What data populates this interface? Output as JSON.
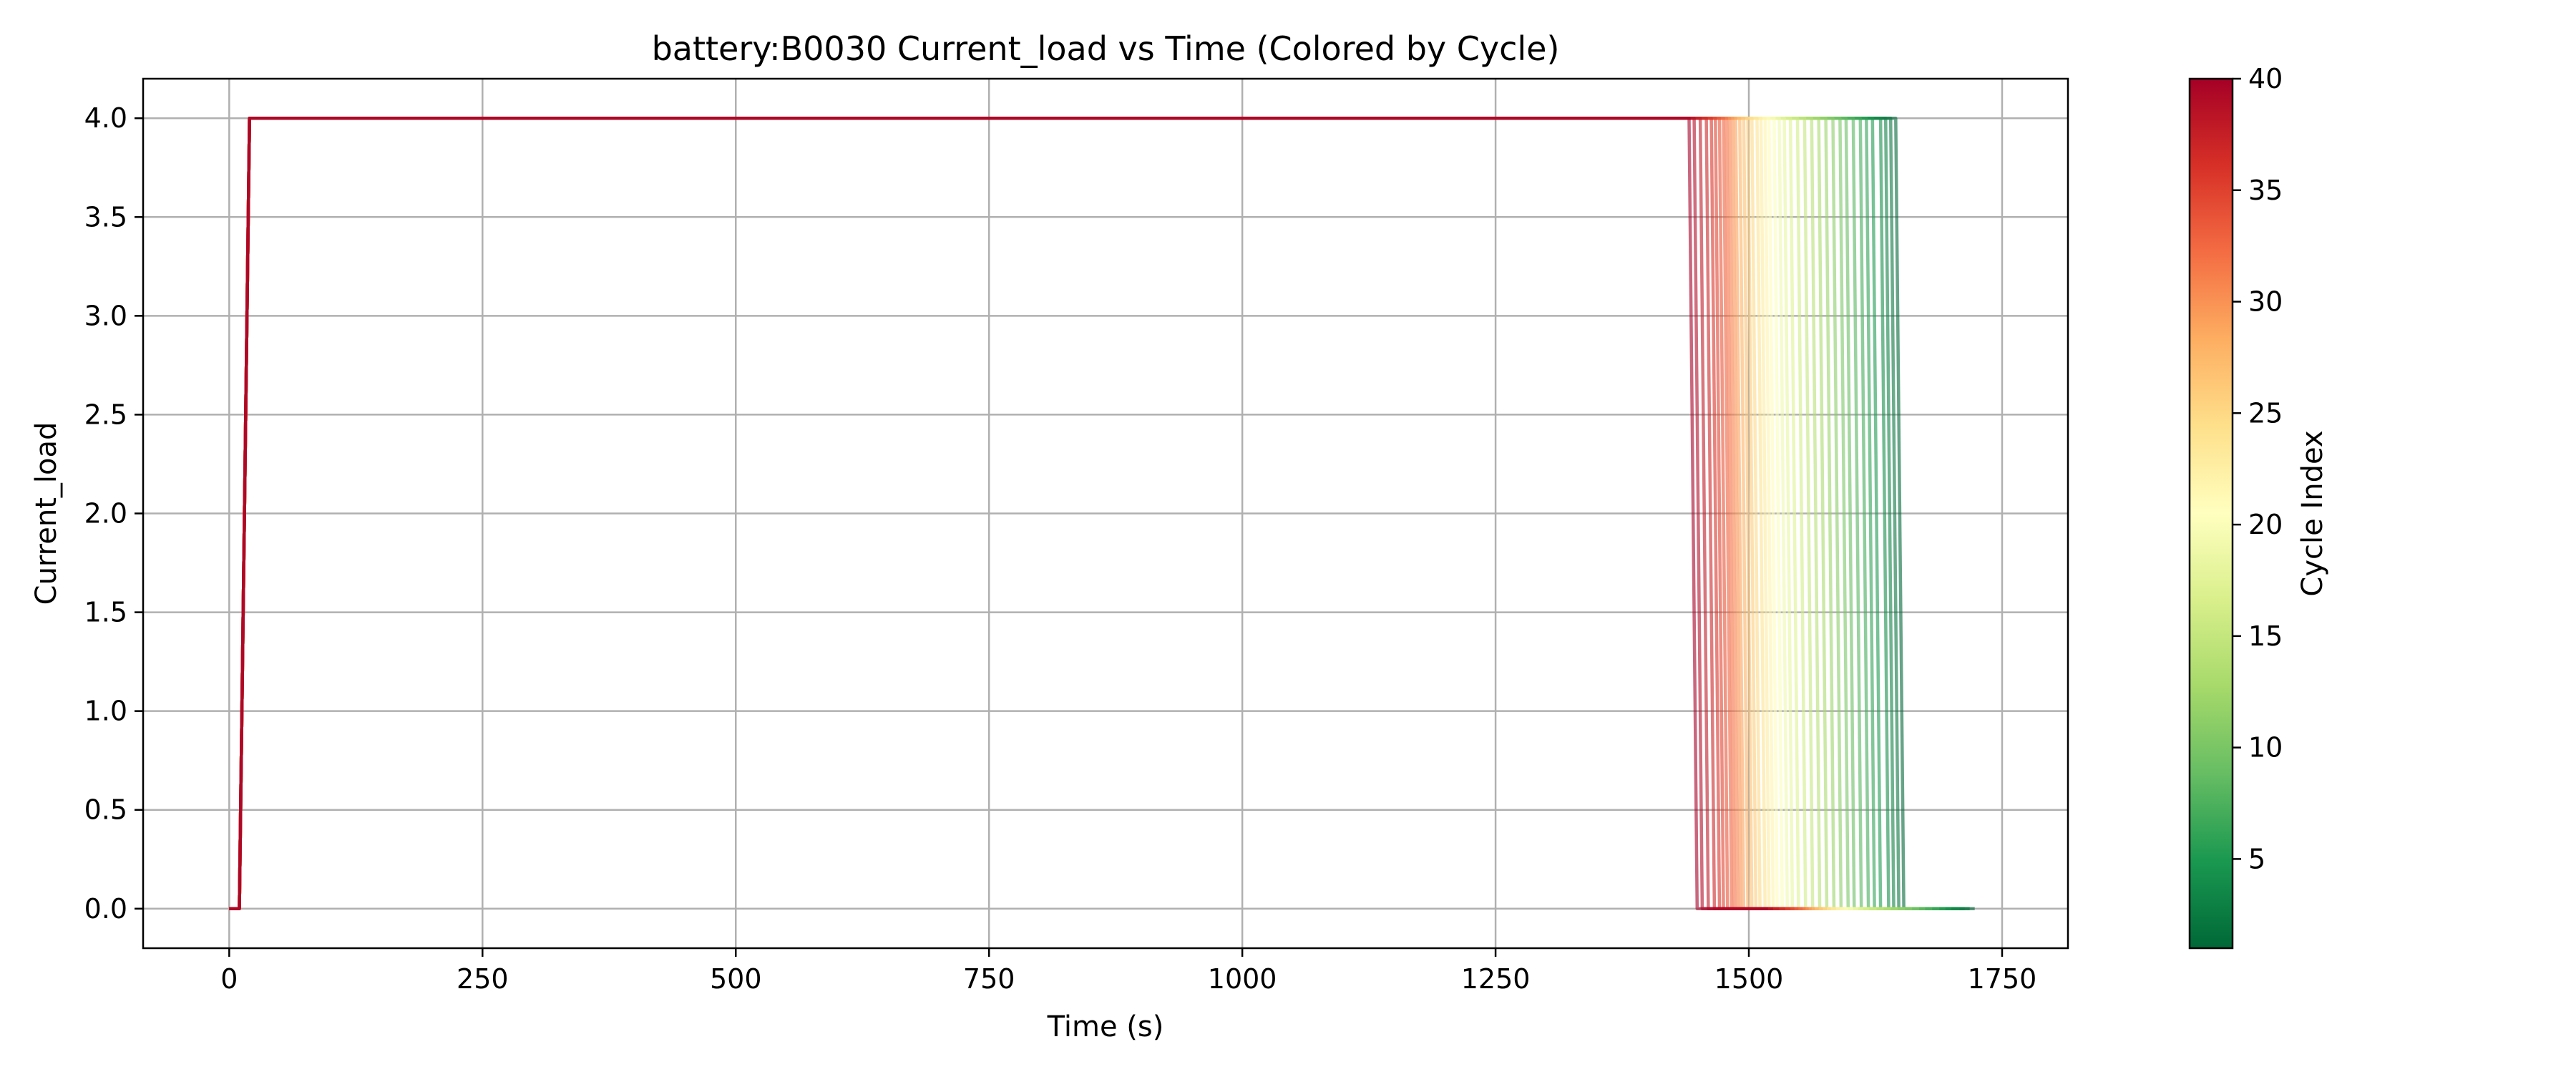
{
  "chart_data": {
    "type": "line",
    "title": "battery:B0030 Current_load vs Time (Colored by Cycle)",
    "xlabel": "Time (s)",
    "ylabel": "Current_load",
    "xlim": [
      -85,
      1815
    ],
    "ylim": [
      -0.2,
      4.2
    ],
    "xticks": [
      0,
      250,
      500,
      750,
      1000,
      1250,
      1500,
      1750
    ],
    "yticks": [
      "0.0",
      "0.5",
      "1.0",
      "1.5",
      "2.0",
      "2.5",
      "3.0",
      "3.5",
      "4.0"
    ],
    "grid": true,
    "colormap": "RdYlGn_r",
    "colorbar": {
      "label": "Cycle Index",
      "range": [
        1,
        40
      ],
      "ticks": [
        5,
        10,
        15,
        20,
        25,
        30,
        35,
        40
      ],
      "colors": [
        "#006837",
        "#1a9850",
        "#66bd63",
        "#a6d96a",
        "#d9ef8b",
        "#ffffbf",
        "#fee08b",
        "#fdae61",
        "#f46d43",
        "#d73027",
        "#a50026"
      ]
    },
    "series_template": {
      "time": [
        0,
        10,
        20
      ],
      "current": [
        0.0,
        0.0,
        4.0
      ],
      "low_current": 0.0,
      "high_current": 4.0
    },
    "series": [
      {
        "cycle": 1,
        "drop_time": 1645,
        "end_time": 1723
      },
      {
        "cycle": 2,
        "drop_time": 1640,
        "end_time": 1718
      },
      {
        "cycle": 3,
        "drop_time": 1635,
        "end_time": 1713
      },
      {
        "cycle": 4,
        "drop_time": 1630,
        "end_time": 1708
      },
      {
        "cycle": 5,
        "drop_time": 1622,
        "end_time": 1700
      },
      {
        "cycle": 6,
        "drop_time": 1616,
        "end_time": 1694
      },
      {
        "cycle": 7,
        "drop_time": 1610,
        "end_time": 1688
      },
      {
        "cycle": 8,
        "drop_time": 1603,
        "end_time": 1681
      },
      {
        "cycle": 9,
        "drop_time": 1596,
        "end_time": 1674
      },
      {
        "cycle": 10,
        "drop_time": 1590,
        "end_time": 1668
      },
      {
        "cycle": 11,
        "drop_time": 1583,
        "end_time": 1661
      },
      {
        "cycle": 12,
        "drop_time": 1576,
        "end_time": 1654
      },
      {
        "cycle": 13,
        "drop_time": 1569,
        "end_time": 1647
      },
      {
        "cycle": 14,
        "drop_time": 1562,
        "end_time": 1640
      },
      {
        "cycle": 15,
        "drop_time": 1555,
        "end_time": 1633
      },
      {
        "cycle": 16,
        "drop_time": 1548,
        "end_time": 1626
      },
      {
        "cycle": 17,
        "drop_time": 1541,
        "end_time": 1619
      },
      {
        "cycle": 18,
        "drop_time": 1535,
        "end_time": 1613
      },
      {
        "cycle": 19,
        "drop_time": 1530,
        "end_time": 1608
      },
      {
        "cycle": 20,
        "drop_time": 1525,
        "end_time": 1603
      },
      {
        "cycle": 21,
        "drop_time": 1520,
        "end_time": 1598
      },
      {
        "cycle": 22,
        "drop_time": 1516,
        "end_time": 1594
      },
      {
        "cycle": 23,
        "drop_time": 1512,
        "end_time": 1590
      },
      {
        "cycle": 24,
        "drop_time": 1508,
        "end_time": 1586
      },
      {
        "cycle": 25,
        "drop_time": 1503,
        "end_time": 1581
      },
      {
        "cycle": 26,
        "drop_time": 1499,
        "end_time": 1577
      },
      {
        "cycle": 27,
        "drop_time": 1495,
        "end_time": 1573
      },
      {
        "cycle": 28,
        "drop_time": 1491,
        "end_time": 1569
      },
      {
        "cycle": 29,
        "drop_time": 1487,
        "end_time": 1565
      },
      {
        "cycle": 30,
        "drop_time": 1484,
        "end_time": 1562
      },
      {
        "cycle": 31,
        "drop_time": 1481,
        "end_time": 1559
      },
      {
        "cycle": 32,
        "drop_time": 1478,
        "end_time": 1556
      },
      {
        "cycle": 33,
        "drop_time": 1475,
        "end_time": 1553
      },
      {
        "cycle": 34,
        "drop_time": 1471,
        "end_time": 1549
      },
      {
        "cycle": 35,
        "drop_time": 1467,
        "end_time": 1545
      },
      {
        "cycle": 36,
        "drop_time": 1463,
        "end_time": 1541
      },
      {
        "cycle": 37,
        "drop_time": 1458,
        "end_time": 1536
      },
      {
        "cycle": 38,
        "drop_time": 1452,
        "end_time": 1530
      },
      {
        "cycle": 39,
        "drop_time": 1446,
        "end_time": 1524
      },
      {
        "cycle": 40,
        "drop_time": 1441,
        "end_time": 1519
      }
    ]
  }
}
